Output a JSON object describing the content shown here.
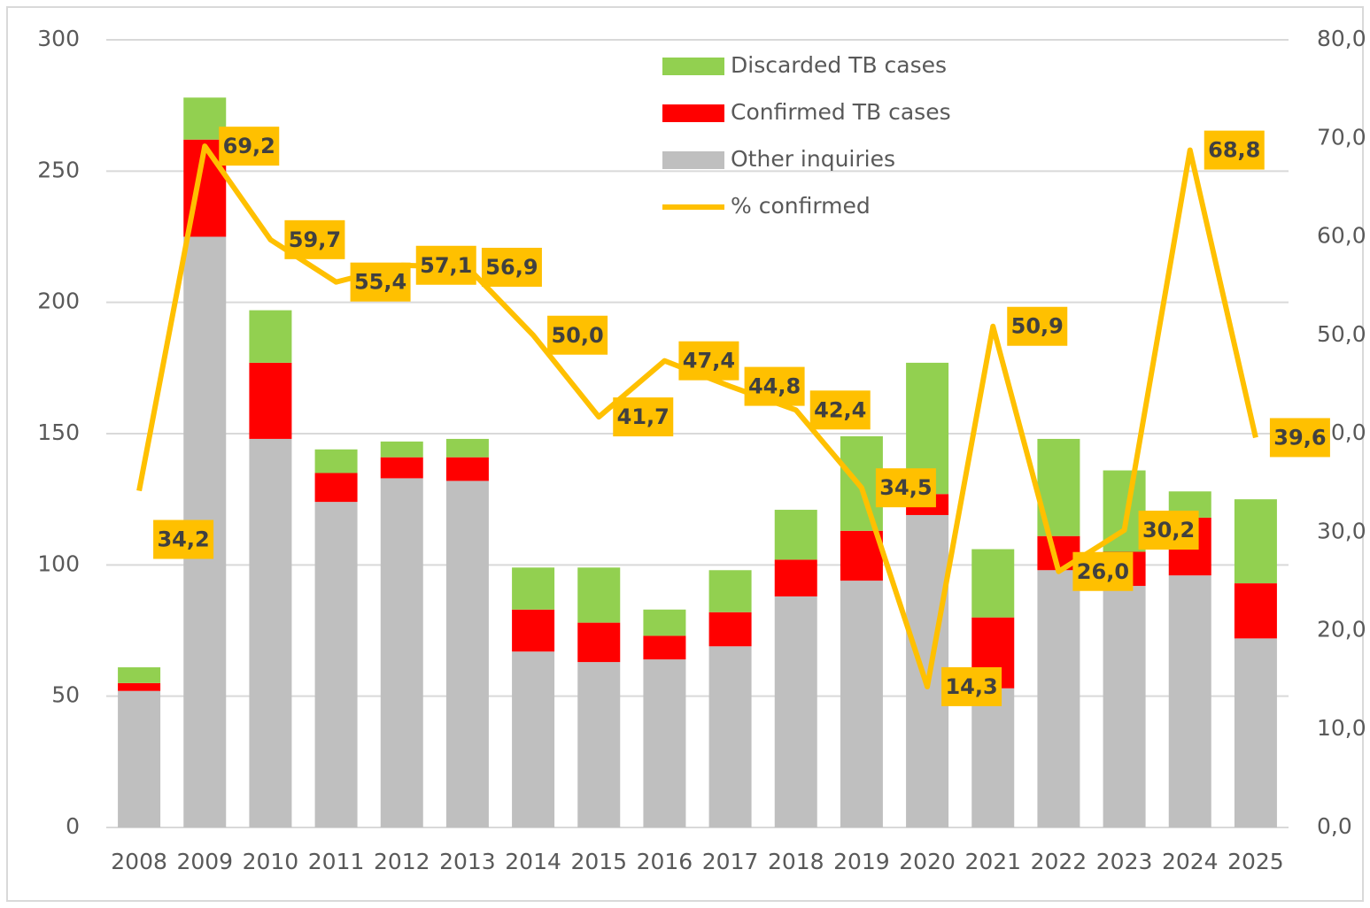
{
  "chart_data": {
    "type": "bar",
    "categories": [
      "2008",
      "2009",
      "2010",
      "2011",
      "2012",
      "2013",
      "2014",
      "2015",
      "2016",
      "2017",
      "2018",
      "2019",
      "2020",
      "2021",
      "2022",
      "2023",
      "2024",
      "2025"
    ],
    "series": [
      {
        "name": "Other inquiries",
        "color": "#bfbfbf",
        "values": [
          52,
          225,
          148,
          124,
          133,
          132,
          67,
          63,
          64,
          69,
          88,
          94,
          119,
          53,
          98,
          92,
          96,
          72
        ]
      },
      {
        "name": "Confirmed TB cases",
        "color": "#ff0000",
        "values": [
          3,
          37,
          29,
          11,
          8,
          9,
          16,
          15,
          9,
          13,
          14,
          19,
          8,
          27,
          13,
          13,
          22,
          21
        ]
      },
      {
        "name": "Discarded TB cases",
        "color": "#92d050",
        "values": [
          6,
          16,
          20,
          9,
          6,
          7,
          16,
          21,
          10,
          16,
          19,
          36,
          50,
          26,
          37,
          31,
          10,
          32
        ]
      },
      {
        "name": "% confirmed",
        "color": "#ffc000",
        "type": "line",
        "axis": "y2",
        "values": [
          34.2,
          69.2,
          59.7,
          55.4,
          57.1,
          56.9,
          50.0,
          41.7,
          47.4,
          44.8,
          42.4,
          34.5,
          14.3,
          50.9,
          26.0,
          30.2,
          68.8,
          39.6
        ],
        "value_labels": [
          "34,2",
          "69,2",
          "59,7",
          "55,4",
          "57,1",
          "56,9",
          "50,0",
          "41,7",
          "47,4",
          "44,8",
          "42,4",
          "34,5",
          "14,3",
          "50,9",
          "26,0",
          "30,2",
          "68,8",
          "39,6"
        ]
      }
    ],
    "ylim": [
      0,
      300
    ],
    "yticks": [
      0,
      50,
      100,
      150,
      200,
      250,
      300
    ],
    "y2lim": [
      0,
      80
    ],
    "y2ticks": [
      {
        "value": 0,
        "label": "0,0"
      },
      {
        "value": 10,
        "label": "10,0"
      },
      {
        "value": 20,
        "label": "20,0"
      },
      {
        "value": 30,
        "label": "30,0"
      },
      {
        "value": 40,
        "label": "40,0"
      },
      {
        "value": 50,
        "label": "50,0"
      },
      {
        "value": 60,
        "label": "60,0"
      },
      {
        "value": 70,
        "label": "70,0"
      },
      {
        "value": 80,
        "label": "80,0"
      }
    ],
    "grid": true,
    "stacked": true,
    "legend": "top"
  }
}
